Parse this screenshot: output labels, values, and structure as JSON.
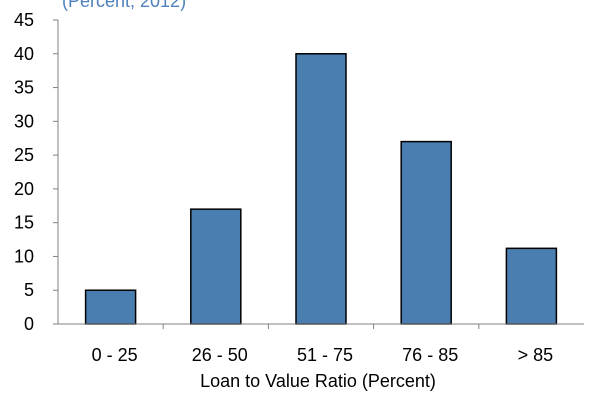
{
  "chart_data": {
    "type": "bar",
    "subtitle": "(Percent, 2012)",
    "categories": [
      "0 - 25",
      "26 - 50",
      "51 - 75",
      "76 - 85",
      "> 85"
    ],
    "values": [
      5,
      17,
      40,
      27,
      11.2
    ],
    "xlabel": "Loan to Value Ratio (Percent)",
    "ylabel": "",
    "ylim": [
      0,
      45
    ],
    "yticks": [
      0,
      5,
      10,
      15,
      20,
      25,
      30,
      35,
      40,
      45
    ],
    "bar_color": "#4a7eb0",
    "bar_edge_color": "#000000",
    "grid": false,
    "legend": "none"
  }
}
